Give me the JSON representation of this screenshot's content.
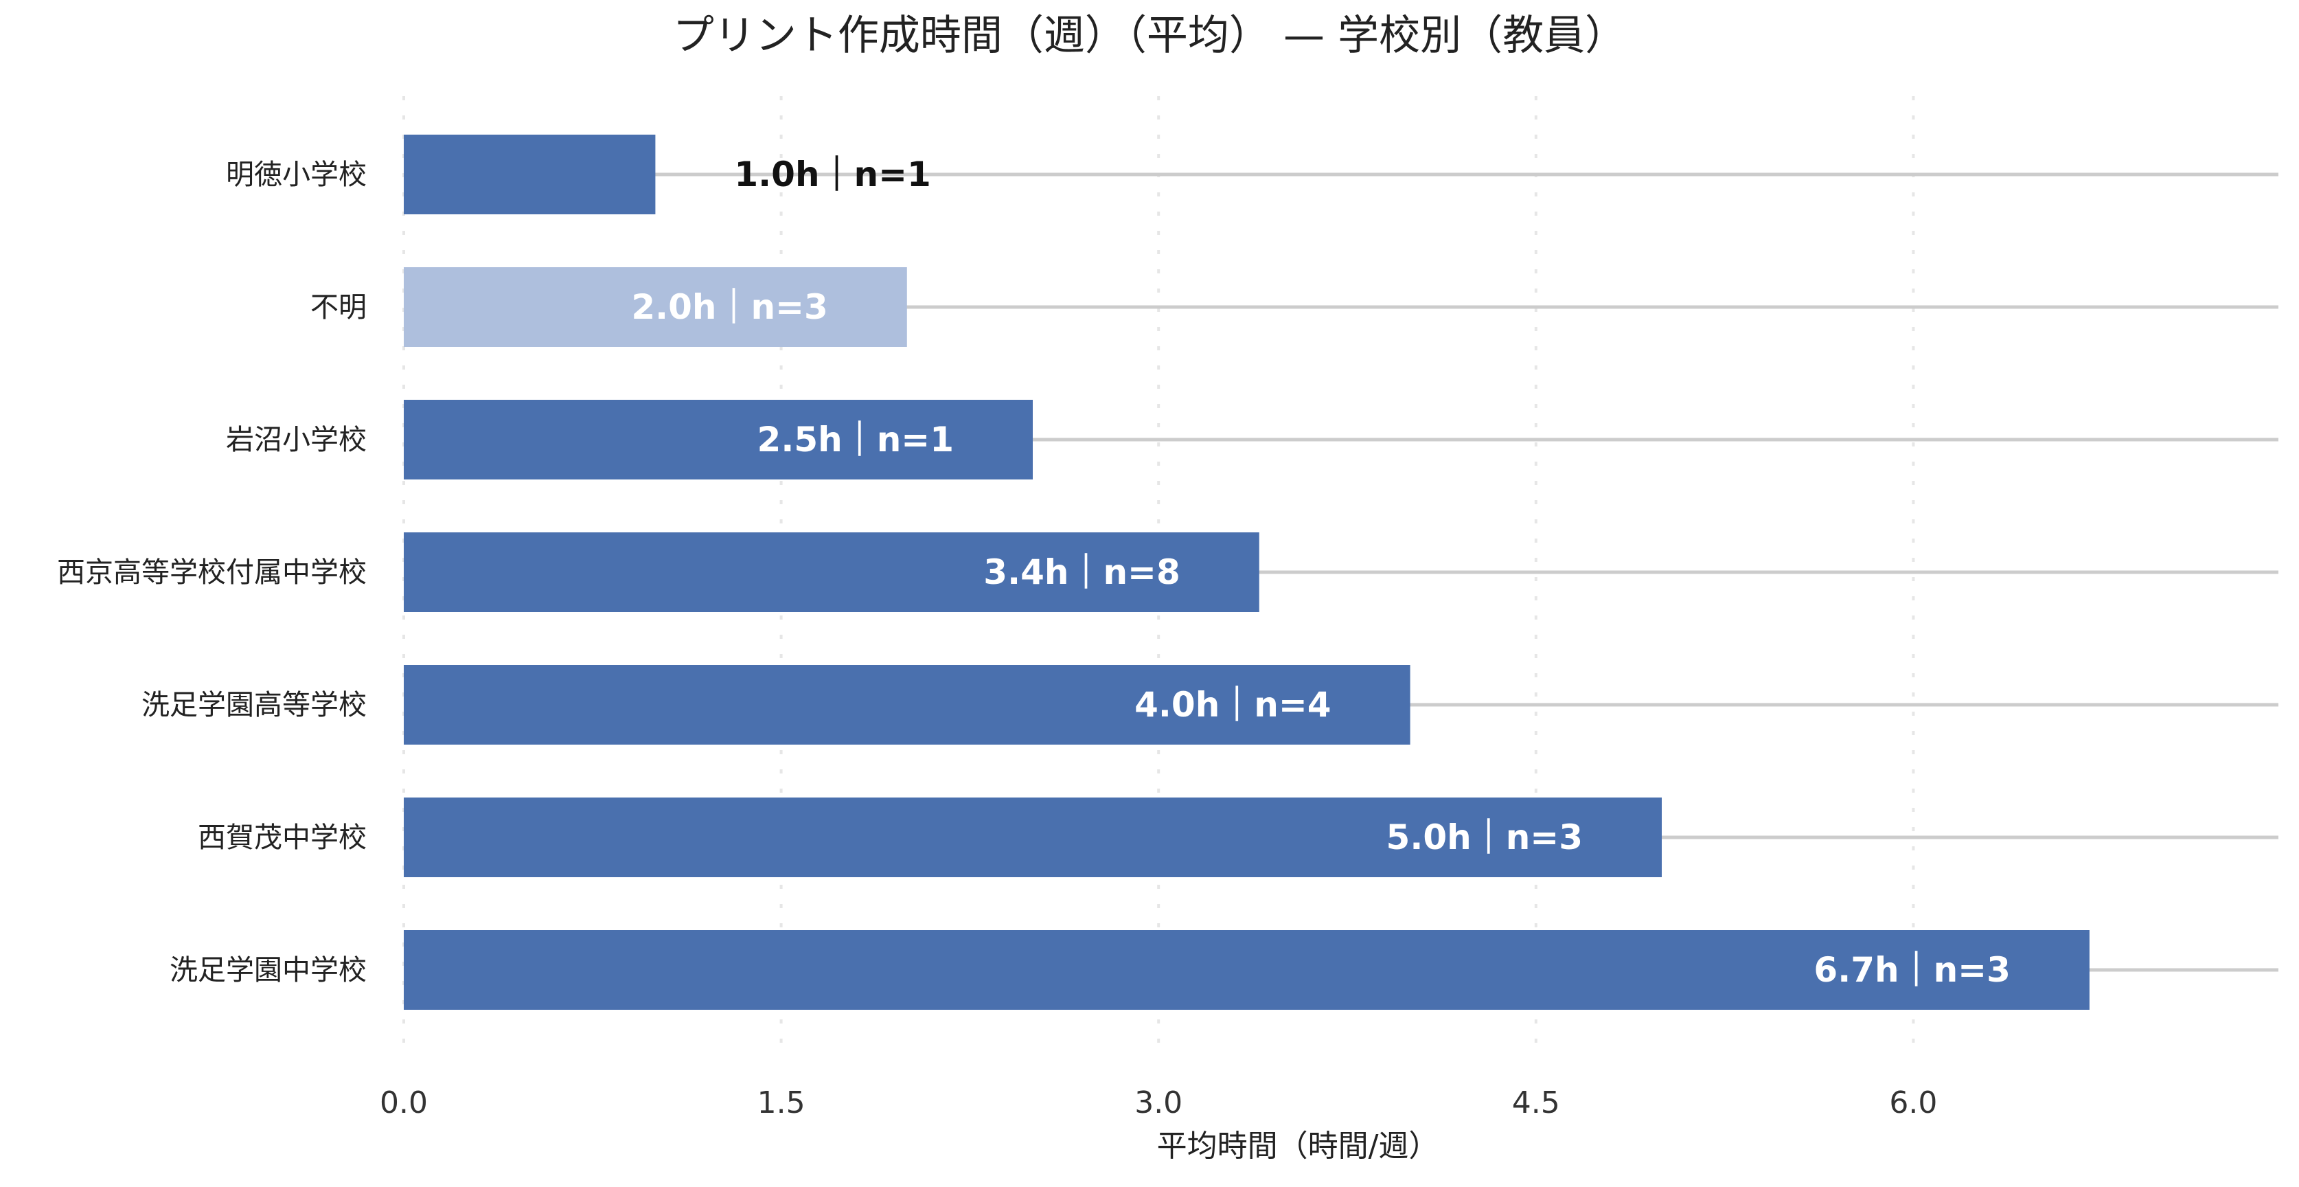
{
  "chart_data": {
    "type": "bar",
    "orientation": "horizontal",
    "title": "プリント作成時間（週）（平均） — 学校別（教員）",
    "xlabel": "平均時間（時間/週）",
    "ylabel": "",
    "xlim": [
      0,
      7.5
    ],
    "x_ticks": [
      0.0,
      1.5,
      3.0,
      4.5,
      6.0
    ],
    "x_tick_labels": [
      "0.0",
      "1.5",
      "3.0",
      "4.5",
      "6.0"
    ],
    "grid": true,
    "categories": [
      "明徳小学校",
      "不明",
      "岩沼小学校",
      "西京高等学校付属中学校",
      "洗足学園高等学校",
      "西賀茂中学校",
      "洗足学園中学校"
    ],
    "values": [
      1.0,
      2.0,
      2.5,
      3.4,
      4.0,
      5.0,
      6.7
    ],
    "counts": [
      1,
      3,
      1,
      8,
      4,
      3,
      3
    ],
    "data_labels": [
      "1.0h｜n=1",
      "2.0h｜n=3",
      "2.5h｜n=1",
      "3.4h｜n=8",
      "4.0h｜n=4",
      "5.0h｜n=3",
      "6.7h｜n=3"
    ],
    "highlight": [
      false,
      true,
      false,
      false,
      false,
      false,
      false
    ],
    "colors": {
      "bar": "#4a70ae",
      "bar_highlight": "#aebfdd",
      "track": "#cccccc",
      "grid": "#e6e6e6"
    }
  }
}
